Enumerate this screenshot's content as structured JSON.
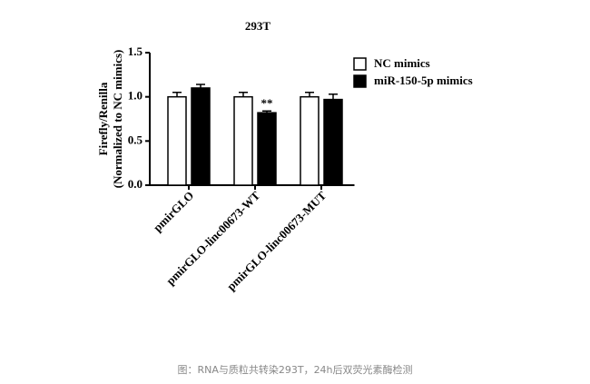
{
  "chart_data": {
    "type": "bar",
    "title": "293T",
    "ylabel": [
      "Firefly/Renilla",
      "(Normalized to NC mimics)"
    ],
    "categories": [
      "pmirGLO",
      "pmirGLO-linc00673-WT",
      "pmirGLO-linc00673-MUT"
    ],
    "series": [
      {
        "name": "NC mimics",
        "color": "#ffffff",
        "values": [
          1.0,
          1.0,
          1.0
        ],
        "errors": [
          0.05,
          0.05,
          0.05
        ]
      },
      {
        "name": "miR-150-5p mimics",
        "color": "#000000",
        "values": [
          1.1,
          0.82,
          0.97
        ],
        "errors": [
          0.04,
          0.02,
          0.06
        ]
      }
    ],
    "annotation": "**",
    "ylim": [
      0,
      1.5
    ],
    "yticks": [
      {
        "value": 0,
        "label": "0.0"
      },
      {
        "value": 0.5,
        "label": "0.5"
      },
      {
        "value": 1.0,
        "label": "1.0"
      },
      {
        "value": 1.5,
        "label": "1.5"
      }
    ],
    "legend": "upper right",
    "caption": "图：RNA与质粒共转染293T，24h后双荧光素酶检测"
  }
}
